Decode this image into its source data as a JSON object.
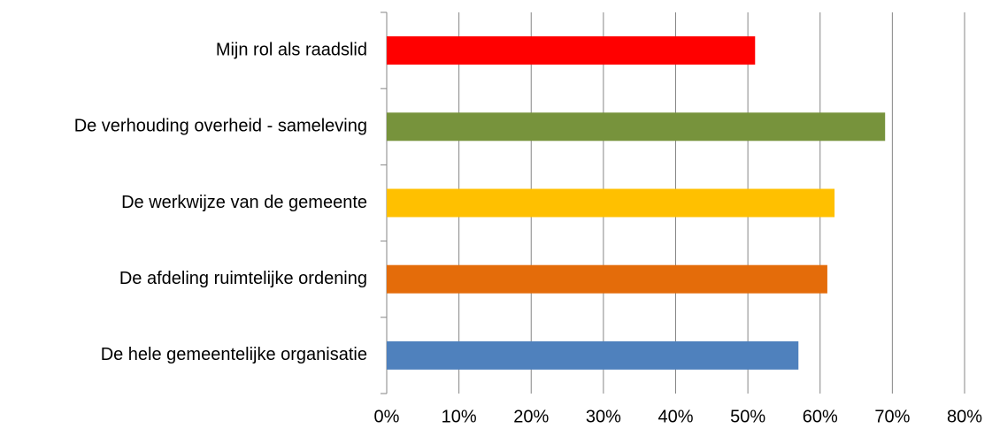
{
  "chart_data": {
    "type": "hbar",
    "categories": [
      "Mijn rol als raadslid",
      "De verhouding overheid - sameleving",
      "De werkwijze van de gemeente",
      "De afdeling ruimtelijke ordening",
      "De hele gemeentelijke organisatie"
    ],
    "values": [
      51,
      69,
      62,
      61,
      57
    ],
    "colors": [
      "#ff0000",
      "#77933c",
      "#ffc000",
      "#e46c0a",
      "#4f81bd"
    ],
    "xlim": [
      0,
      80
    ],
    "xticks": [
      {
        "value": 0,
        "label": "0%"
      },
      {
        "value": 10,
        "label": "10%"
      },
      {
        "value": 20,
        "label": "20%"
      },
      {
        "value": 30,
        "label": "30%"
      },
      {
        "value": 40,
        "label": "40%"
      },
      {
        "value": 50,
        "label": "50%"
      },
      {
        "value": 60,
        "label": "60%"
      },
      {
        "value": 70,
        "label": "70%"
      },
      {
        "value": 80,
        "label": "80%"
      }
    ],
    "grid": true
  }
}
